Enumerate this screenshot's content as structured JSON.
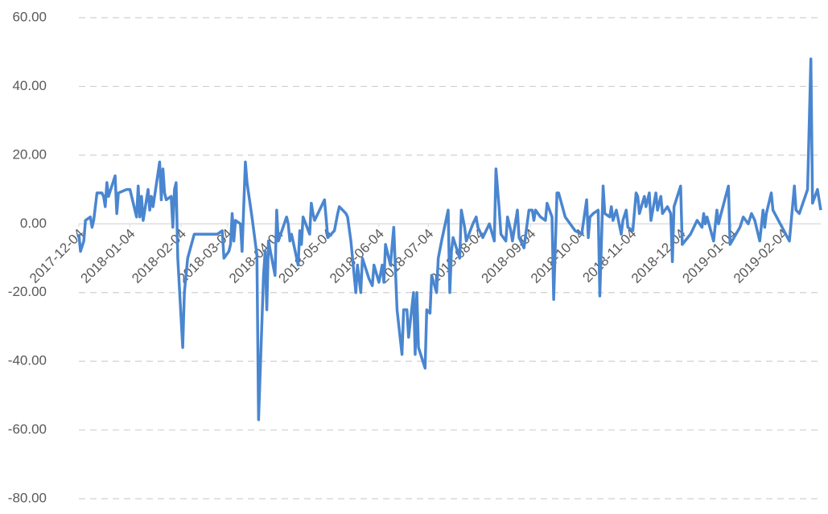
{
  "chart_data": {
    "type": "line",
    "x": [
      "2017-12-04",
      "2017-12-05",
      "2017-12-07",
      "2017-12-08",
      "2017-12-11",
      "2017-12-12",
      "2017-12-13",
      "2017-12-15",
      "2017-12-18",
      "2017-12-19",
      "2017-12-20",
      "2017-12-21",
      "2017-12-22",
      "2017-12-26",
      "2017-12-27",
      "2017-12-28",
      "2018-01-02",
      "2018-01-04",
      "2018-01-08",
      "2018-01-09",
      "2018-01-10",
      "2018-01-11",
      "2018-01-12",
      "2018-01-15",
      "2018-01-16",
      "2018-01-17",
      "2018-01-18",
      "2018-01-22",
      "2018-01-23",
      "2018-01-24",
      "2018-01-25",
      "2018-01-26",
      "2018-01-29",
      "2018-01-30",
      "2018-01-31",
      "2018-02-01",
      "2018-02-02",
      "2018-02-05",
      "2018-02-06",
      "2018-02-08",
      "2018-02-12",
      "2018-02-26",
      "2018-03-01",
      "2018-03-02",
      "2018-03-05",
      "2018-03-06",
      "2018-03-07",
      "2018-03-08",
      "2018-03-09",
      "2018-03-12",
      "2018-03-13",
      "2018-03-15",
      "2018-03-16",
      "2018-03-19",
      "2018-03-22",
      "2018-03-23",
      "2018-03-26",
      "2018-03-27",
      "2018-03-28",
      "2018-03-29",
      "2018-04-02",
      "2018-04-03",
      "2018-04-04",
      "2018-04-09",
      "2018-04-10",
      "2018-04-11",
      "2018-04-12",
      "2018-04-16",
      "2018-04-17",
      "2018-04-18",
      "2018-04-19",
      "2018-04-23",
      "2018-04-24",
      "2018-04-25",
      "2018-04-26",
      "2018-05-02",
      "2018-05-04",
      "2018-05-08",
      "2018-05-10",
      "2018-05-11",
      "2018-05-15",
      "2018-05-16",
      "2018-05-18",
      "2018-05-21",
      "2018-05-22",
      "2018-05-24",
      "2018-05-25",
      "2018-05-29",
      "2018-05-31",
      "2018-06-01",
      "2018-06-04",
      "2018-06-06",
      "2018-06-07",
      "2018-06-08",
      "2018-06-11",
      "2018-06-13",
      "2018-06-15",
      "2018-06-18",
      "2018-06-19",
      "2018-06-21",
      "2018-06-22",
      "2018-06-25",
      "2018-06-26",
      "2018-06-27",
      "2018-06-28",
      "2018-07-02",
      "2018-07-03",
      "2018-07-05",
      "2018-07-06",
      "2018-07-09",
      "2018-07-10",
      "2018-07-12",
      "2018-07-16",
      "2018-07-17",
      "2018-07-18",
      "2018-07-19",
      "2018-07-23",
      "2018-07-24",
      "2018-07-26",
      "2018-07-27",
      "2018-07-31",
      "2018-08-02",
      "2018-08-03",
      "2018-08-06",
      "2018-08-10",
      "2018-08-13",
      "2018-08-14",
      "2018-08-16",
      "2018-08-17",
      "2018-08-20",
      "2018-08-21",
      "2018-08-23",
      "2018-08-24",
      "2018-08-27",
      "2018-08-28",
      "2018-08-31",
      "2018-09-03",
      "2018-09-05",
      "2018-09-06",
      "2018-09-07",
      "2018-09-10",
      "2018-09-13",
      "2018-09-14",
      "2018-09-17",
      "2018-09-18",
      "2018-09-20",
      "2018-09-21",
      "2018-09-25",
      "2018-10-01",
      "2018-10-05",
      "2018-10-08",
      "2018-10-09",
      "2018-10-10",
      "2018-10-12",
      "2018-10-15",
      "2018-10-16",
      "2018-10-18",
      "2018-10-19",
      "2018-10-22",
      "2018-10-23",
      "2018-10-24",
      "2018-10-26",
      "2018-10-29",
      "2018-10-30",
      "2018-11-01",
      "2018-11-02",
      "2018-11-05",
      "2018-11-07",
      "2018-11-08",
      "2018-11-09",
      "2018-11-12",
      "2018-11-13",
      "2018-11-15",
      "2018-11-16",
      "2018-11-19",
      "2018-11-20",
      "2018-11-22",
      "2018-11-23",
      "2018-11-26",
      "2018-11-28",
      "2018-11-29",
      "2018-11-30",
      "2018-12-04",
      "2018-12-05",
      "2018-12-10",
      "2018-12-14",
      "2018-12-17",
      "2018-12-18",
      "2018-12-19",
      "2018-12-20",
      "2018-12-24",
      "2018-12-26",
      "2018-12-27",
      "2018-12-28",
      "2019-01-02",
      "2019-01-03",
      "2019-01-09",
      "2019-01-11",
      "2019-01-14",
      "2019-01-16",
      "2019-01-18",
      "2019-01-21",
      "2019-01-23",
      "2019-01-24",
      "2019-01-25",
      "2019-01-28",
      "2019-01-29",
      "2019-02-08",
      "2019-02-11",
      "2019-02-12",
      "2019-02-14",
      "2019-02-19",
      "2019-02-21",
      "2019-02-22",
      "2019-02-25",
      "2019-02-27"
    ],
    "series": [
      {
        "color": "#4a86d0",
        "values": [
          -3,
          -8,
          -5,
          1,
          2,
          -1,
          1,
          9,
          9,
          8,
          5,
          12,
          8,
          14,
          3,
          9,
          10,
          10,
          2,
          11,
          2,
          8,
          1,
          10,
          4,
          8,
          5,
          18,
          7,
          16,
          9,
          7,
          8,
          -1,
          10,
          12,
          -10,
          -36,
          -20,
          -10,
          -3,
          -3,
          -2,
          -10,
          -8,
          -6,
          3,
          -5,
          1,
          0,
          -8,
          18,
          12,
          2,
          -9,
          -57,
          -15,
          -8,
          -25,
          -5,
          -15,
          4,
          -5,
          2,
          0,
          -5,
          -3,
          -12,
          -2,
          -6,
          2,
          -3,
          6,
          3,
          1,
          7,
          -4,
          -2,
          3,
          5,
          3,
          2,
          -5,
          -20,
          -12,
          -20,
          -10,
          -16,
          -18,
          -12,
          -17,
          -12,
          -17,
          -6,
          -12,
          -1,
          -25,
          -38,
          -25,
          -25,
          -33,
          -20,
          -38,
          -20,
          -36,
          -42,
          -25,
          -26,
          -15,
          -20,
          -10,
          -5,
          4,
          -20,
          -8,
          -4,
          -10,
          4,
          -1,
          -5,
          0,
          2,
          -1,
          -4,
          0,
          -5,
          16,
          4,
          -3,
          -5,
          2,
          -2,
          -5,
          4,
          -4,
          -7,
          4,
          4,
          1,
          4,
          2,
          1,
          6,
          2,
          -22,
          9,
          9,
          2,
          -2,
          -3,
          7,
          -4,
          2,
          3,
          4,
          -21,
          11,
          3,
          2,
          5,
          1,
          4,
          -3,
          1,
          4,
          -1,
          -2,
          9,
          8,
          3,
          8,
          5,
          9,
          1,
          9,
          4,
          8,
          3,
          5,
          3,
          -11,
          5,
          11,
          -6,
          -3,
          1,
          -1,
          3,
          0,
          2,
          -5,
          4,
          0,
          2,
          11,
          -6,
          -1,
          2,
          0,
          3,
          1,
          -5,
          4,
          -1,
          3,
          9,
          4,
          -5,
          11,
          4,
          3,
          10,
          48,
          6,
          10,
          4
        ]
      }
    ],
    "xlim": [
      "2017-12-04",
      "2019-02-27"
    ],
    "xticks": [
      "2017-12-04",
      "2018-01-04",
      "2018-02-04",
      "2018-03-04",
      "2018-04-04",
      "2018-05-04",
      "2018-06-04",
      "2018-07-04",
      "2018-08-04",
      "2018-09-04",
      "2018-10-04",
      "2018-11-04",
      "2018-12-04",
      "2019-01-04",
      "2019-02-04"
    ],
    "ylim": [
      -80,
      60
    ],
    "yticks": [
      {
        "value": -80,
        "label": "-80.00"
      },
      {
        "value": -60,
        "label": "-60.00"
      },
      {
        "value": -40,
        "label": "-40.00"
      },
      {
        "value": -20,
        "label": "-20.00"
      },
      {
        "value": 0,
        "label": "0.00"
      },
      {
        "value": 20,
        "label": "20.00"
      },
      {
        "value": 40,
        "label": "40.00"
      },
      {
        "value": 60,
        "label": "60.00"
      }
    ],
    "grid": true
  }
}
